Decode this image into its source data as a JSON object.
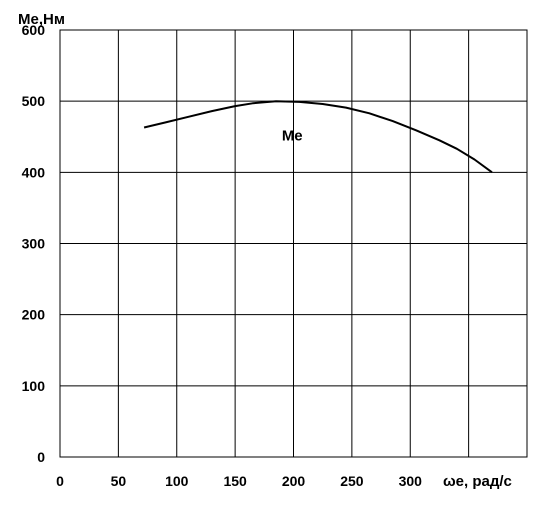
{
  "chart_data": {
    "type": "line",
    "title": "",
    "ylabel": "Ме,Нм",
    "xlabel": "ωе, рад/с",
    "xlim": [
      0,
      400
    ],
    "ylim": [
      0,
      600
    ],
    "x_ticks": [
      0,
      50,
      100,
      150,
      200,
      250,
      300
    ],
    "y_ticks": [
      0,
      100,
      200,
      300,
      400,
      500,
      600
    ],
    "grid": true,
    "series": [
      {
        "name": "Ме",
        "color": "#000000",
        "x": [
          72,
          90,
          110,
          130,
          150,
          165,
          185,
          205,
          225,
          245,
          265,
          285,
          305,
          325,
          340,
          355,
          370
        ],
        "y": [
          463,
          470,
          478,
          486,
          493,
          497,
          500,
          499,
          496,
          491,
          483,
          472,
          459,
          445,
          433,
          418,
          400
        ]
      }
    ],
    "series_label": {
      "text": "Ме",
      "x": 190,
      "y": 445
    }
  }
}
